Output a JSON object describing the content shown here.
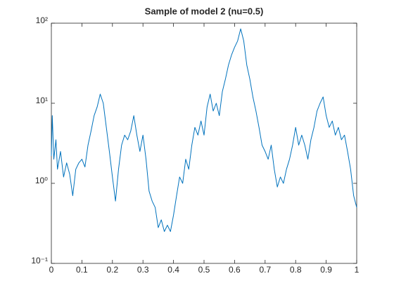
{
  "chart_data": {
    "type": "line",
    "title": "Sample of model 2 (nu=0.5)",
    "x": [
      0,
      0.003,
      0.008,
      0.015,
      0.02,
      0.03,
      0.04,
      0.05,
      0.06,
      0.07,
      0.08,
      0.09,
      0.1,
      0.11,
      0.12,
      0.13,
      0.14,
      0.15,
      0.16,
      0.17,
      0.18,
      0.19,
      0.2,
      0.21,
      0.22,
      0.23,
      0.24,
      0.25,
      0.26,
      0.27,
      0.28,
      0.29,
      0.3,
      0.31,
      0.32,
      0.33,
      0.34,
      0.35,
      0.36,
      0.37,
      0.38,
      0.39,
      0.4,
      0.41,
      0.42,
      0.43,
      0.44,
      0.45,
      0.46,
      0.47,
      0.48,
      0.49,
      0.5,
      0.51,
      0.52,
      0.53,
      0.54,
      0.55,
      0.56,
      0.57,
      0.58,
      0.59,
      0.6,
      0.61,
      0.62,
      0.63,
      0.64,
      0.65,
      0.66,
      0.67,
      0.68,
      0.69,
      0.7,
      0.71,
      0.72,
      0.73,
      0.74,
      0.75,
      0.76,
      0.77,
      0.78,
      0.79,
      0.8,
      0.81,
      0.82,
      0.83,
      0.84,
      0.85,
      0.86,
      0.87,
      0.88,
      0.89,
      0.9,
      0.91,
      0.92,
      0.93,
      0.94,
      0.95,
      0.96,
      0.97,
      0.98,
      0.99,
      1
    ],
    "series": [
      {
        "color": "#0072bd",
        "values": [
          2.2,
          7,
          2.0,
          3.5,
          1.5,
          2.5,
          1.2,
          1.8,
          1.3,
          0.7,
          1.5,
          1.8,
          2.0,
          1.6,
          3.0,
          4.5,
          7,
          9,
          13,
          10,
          5,
          2.5,
          1.2,
          0.6,
          1.5,
          3,
          4,
          3.5,
          4.5,
          7,
          4,
          2.5,
          4,
          2.0,
          0.8,
          0.6,
          0.5,
          0.28,
          0.35,
          0.25,
          0.3,
          0.25,
          0.4,
          0.7,
          1.2,
          1.0,
          2.0,
          1.5,
          3.0,
          5,
          4,
          6,
          4,
          9,
          13,
          8,
          10,
          7,
          14,
          20,
          30,
          40,
          50,
          60,
          85,
          60,
          30,
          20,
          12,
          8,
          5,
          3,
          2.5,
          2.0,
          3,
          1.5,
          0.9,
          1.2,
          1.0,
          1.5,
          2.0,
          3,
          5,
          3,
          4,
          3,
          2.0,
          3.5,
          5,
          8,
          10,
          12,
          7,
          5,
          6,
          4,
          5,
          3.5,
          4,
          2.5,
          1.5,
          0.7,
          0.5
        ]
      }
    ],
    "xlim": [
      0,
      1
    ],
    "xticks": [
      0,
      0.1,
      0.2,
      0.3,
      0.4,
      0.5,
      0.6,
      0.7,
      0.8,
      0.9,
      1
    ],
    "ylim": [
      0.1,
      100
    ],
    "yticks": [
      {
        "value": 0.1,
        "label": "10⁻¹"
      },
      {
        "value": 1,
        "label": "10⁰"
      },
      {
        "value": 10,
        "label": "10¹"
      },
      {
        "value": 100,
        "label": "10²"
      }
    ],
    "yscale": "log"
  }
}
